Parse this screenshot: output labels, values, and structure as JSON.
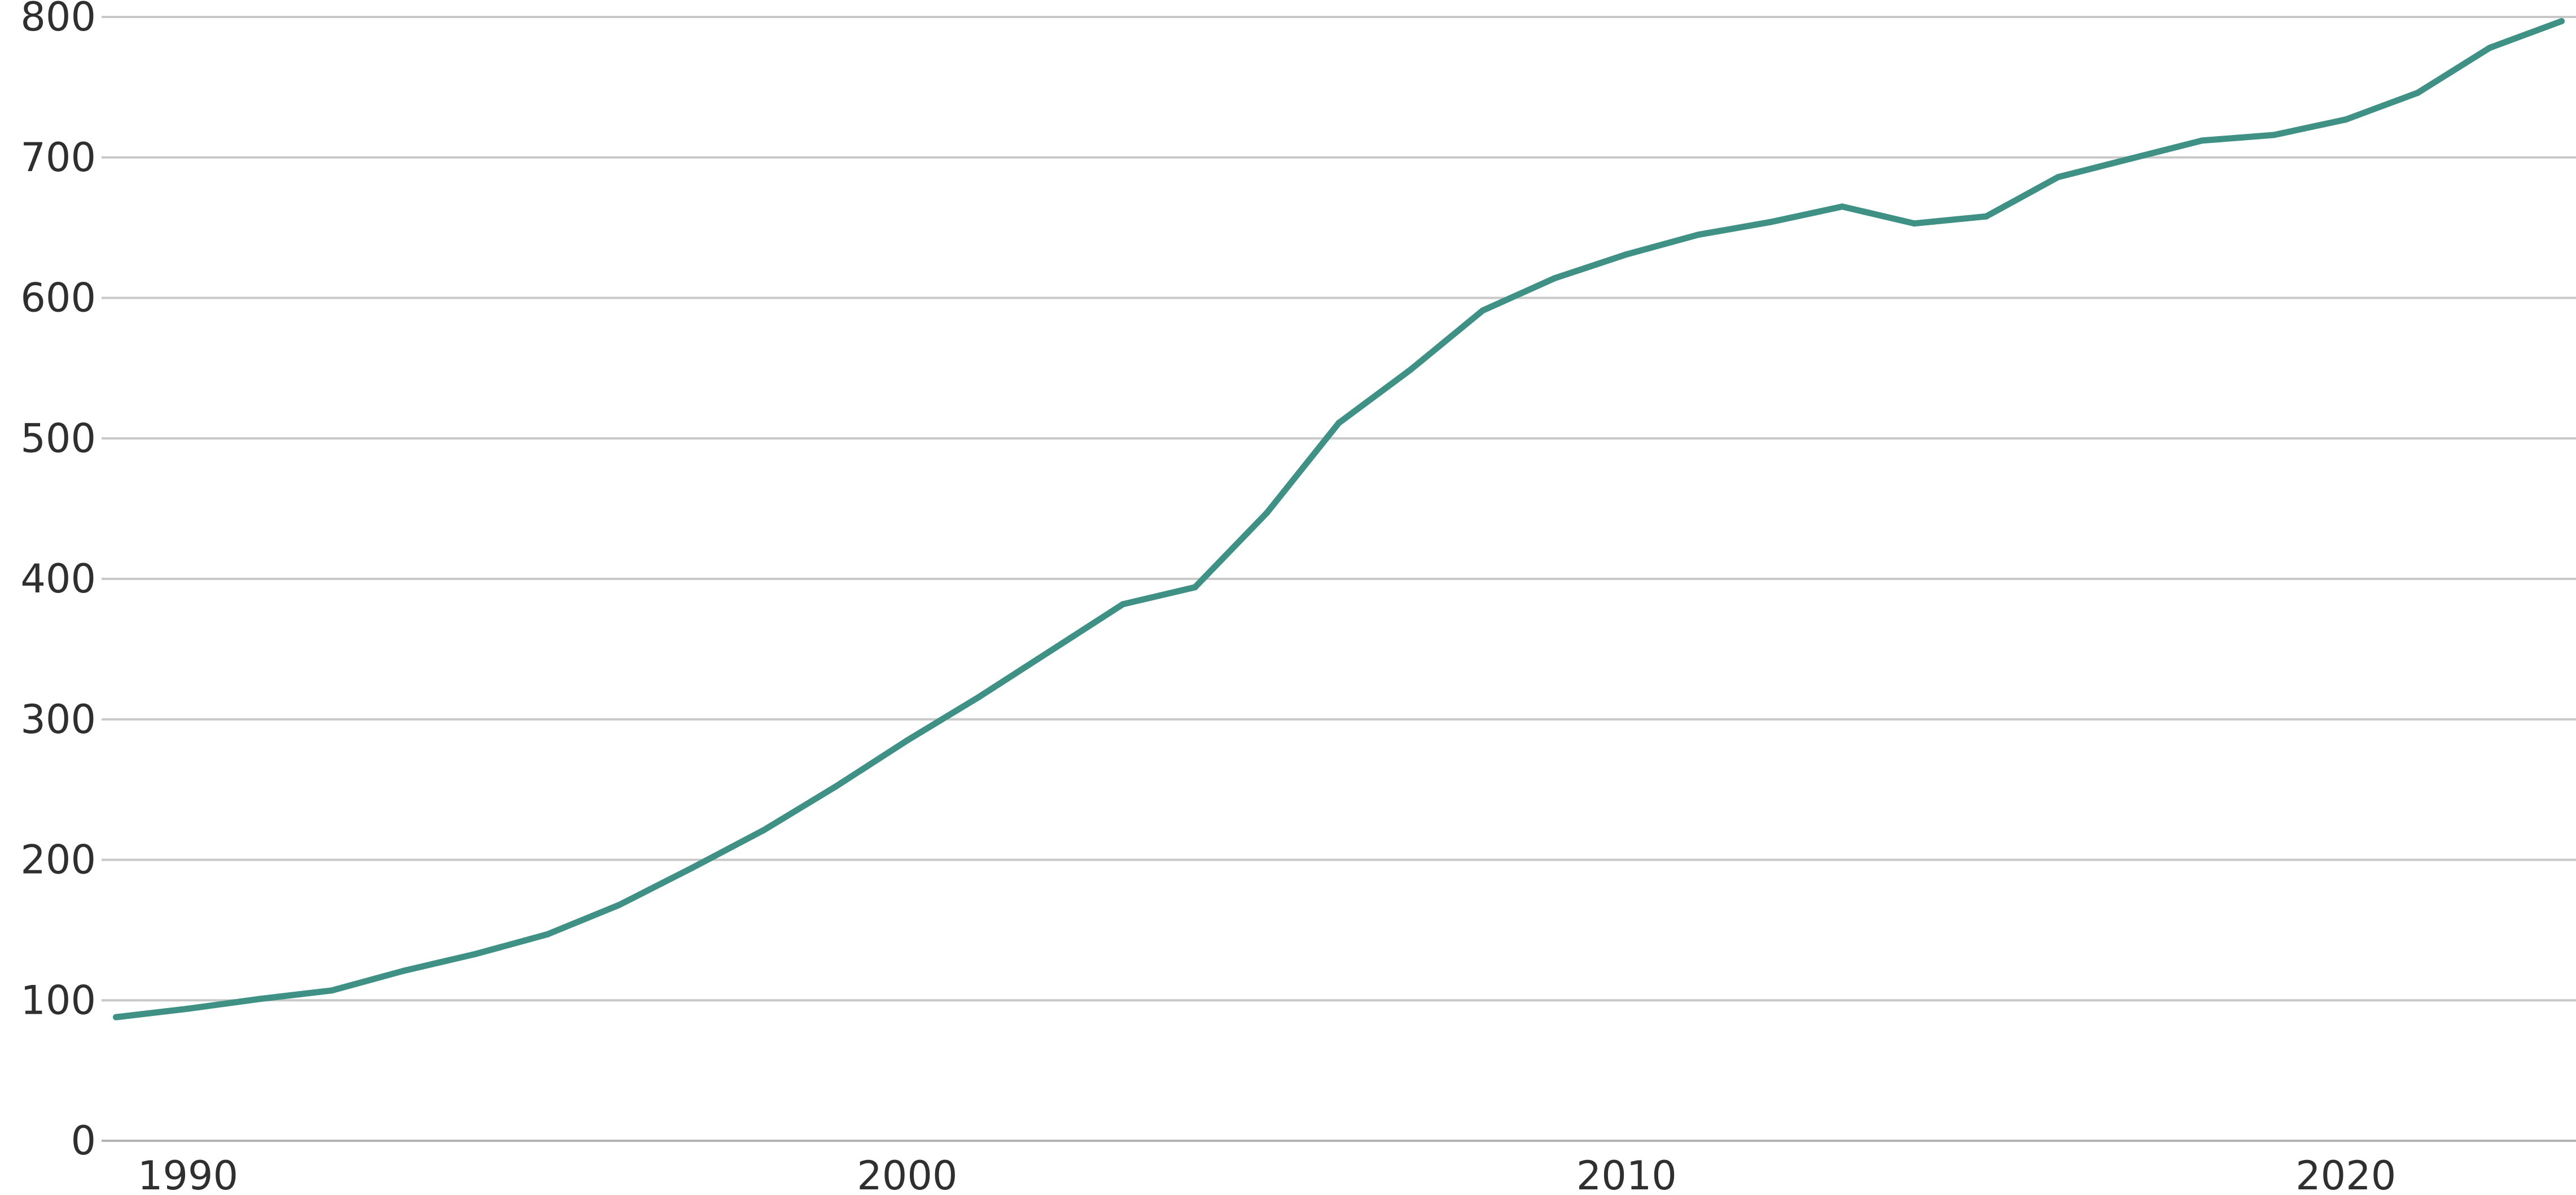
{
  "chart_data": {
    "type": "line",
    "title": "",
    "xlabel": "",
    "ylabel": "",
    "grid": true,
    "legend": "none",
    "xlim": [
      1988.8,
      2023.2
    ],
    "ylim": [
      0,
      800
    ],
    "x_ticks": [
      1990,
      2000,
      2010,
      2020
    ],
    "y_ticks": [
      0,
      100,
      200,
      300,
      400,
      500,
      600,
      700,
      800
    ],
    "series": [
      {
        "color": "#3f9186",
        "x": [
          1989,
          1990,
          1991,
          1992,
          1993,
          1994,
          1995,
          1996,
          1997,
          1998,
          1999,
          2000,
          2001,
          2002,
          2003,
          2004,
          2005,
          2006,
          2007,
          2008,
          2009,
          2010,
          2011,
          2012,
          2013,
          2014,
          2015,
          2016,
          2017,
          2018,
          2019,
          2020,
          2021,
          2022,
          2023
        ],
        "values": [
          88,
          94,
          101,
          107,
          121,
          133,
          147,
          168,
          194,
          221,
          252,
          285,
          316,
          349,
          382,
          394,
          447,
          511,
          549,
          591,
          614,
          631,
          645,
          654,
          665,
          653,
          658,
          686,
          699,
          712,
          716,
          727,
          746,
          778,
          797
        ]
      }
    ]
  }
}
